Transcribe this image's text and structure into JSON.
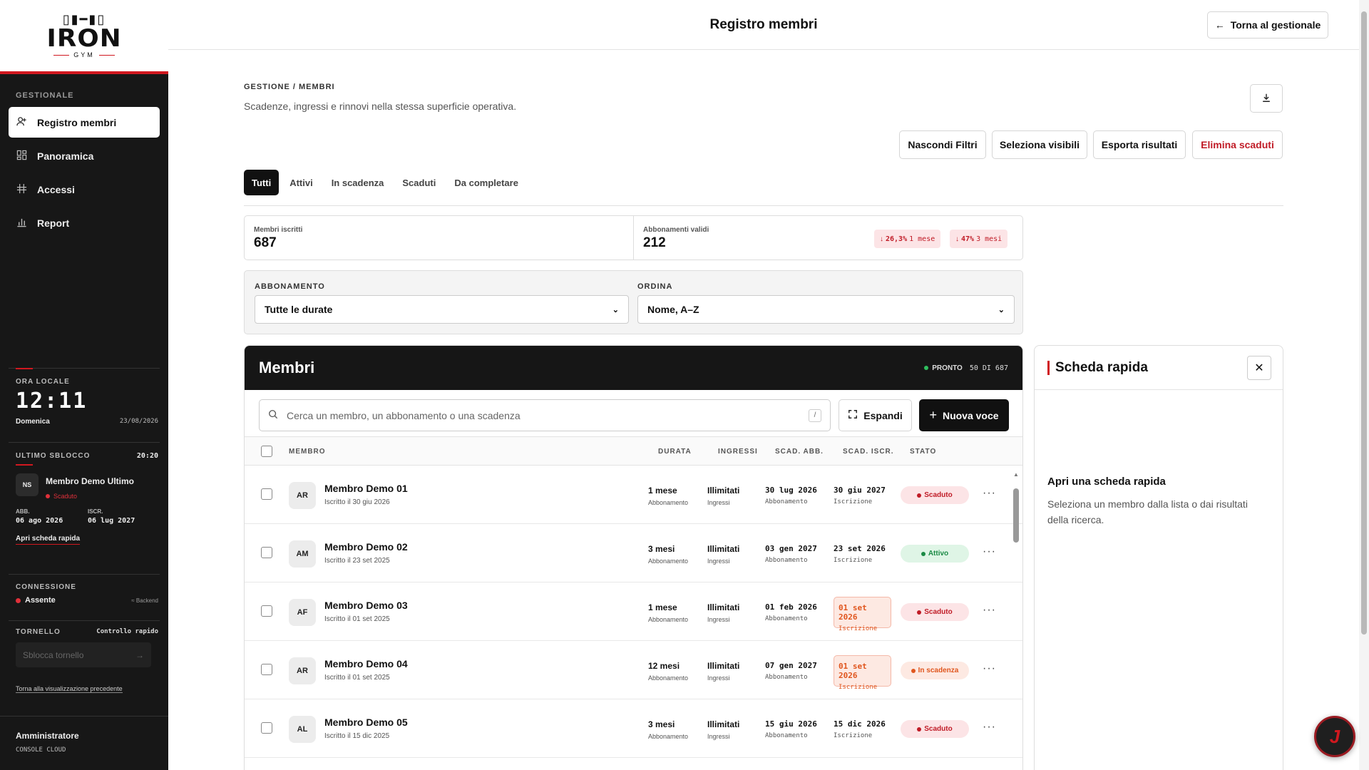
{
  "brand": {
    "mark": "▯▮━▮▯",
    "name": "IRON",
    "sub": "GYM"
  },
  "sidebar": {
    "section_label": "GESTIONALE",
    "items": [
      {
        "label": "Registro membri",
        "icon": "user-plus-icon",
        "active": true
      },
      {
        "label": "Panoramica",
        "icon": "dashboard-icon",
        "active": false
      },
      {
        "label": "Accessi",
        "icon": "access-icon",
        "active": false
      },
      {
        "label": "Report",
        "icon": "bar-chart-icon",
        "active": false
      }
    ],
    "clock": {
      "label": "ORA LOCALE",
      "time": "12:11",
      "day": "Domenica",
      "date": "23/08/2026"
    },
    "last_unlock": {
      "label": "ULTIMO SBLOCCO",
      "time": "20:20",
      "initials": "NS",
      "name": "Membro Demo Ultimo",
      "status": "Scaduto",
      "abb_label": "ABB.",
      "abb_value": "06 ago 2026",
      "iscr_label": "ISCR.",
      "iscr_value": "06 lug 2027",
      "link": "Apri scheda rapida"
    },
    "connection": {
      "label": "CONNESSIONE",
      "status": "Assente",
      "backend": "Backend"
    },
    "turnstile": {
      "label": "TORNELLO",
      "quick": "Controllo rapido",
      "placeholder": "Sblocca tornello"
    },
    "back_link": "Torna alla visualizzazione precedente",
    "user": {
      "role": "Amministratore",
      "console": "CONSOLE CLOUD"
    }
  },
  "topbar": {
    "title": "Registro membri",
    "back_button": "Torna al gestionale"
  },
  "page": {
    "breadcrumb": "GESTIONE / MEMBRI",
    "subtitle": "Scadenze, ingressi e rinnovi nella stessa superficie operativa.",
    "actions": {
      "hide_filters": "Nascondi Filtri",
      "select_visible": "Seleziona visibili",
      "export": "Esporta risultati",
      "delete_expired": "Elimina scaduti"
    },
    "tabs": [
      "Tutti",
      "Attivi",
      "In scadenza",
      "Scaduti",
      "Da completare"
    ],
    "stats": {
      "members_label": "Membri iscritti",
      "members_value": "687",
      "subs_label": "Abbonamenti validi",
      "subs_value": "212",
      "delta1_value": "26,3%",
      "delta1_period": "1 mese",
      "delta2_value": "47%",
      "delta2_period": "3 mesi"
    },
    "filters": {
      "plan_label": "ABBONAMENTO",
      "plan_value": "Tutte le durate",
      "sort_label": "ORDINA",
      "sort_value": "Nome, A–Z"
    }
  },
  "members": {
    "title": "Membri",
    "status": "PRONTO",
    "count": "50 DI 687",
    "search_placeholder": "Cerca un membro, un abbonamento o una scadenza",
    "search_shortcut": "/",
    "expand": "Espandi",
    "new_entry": "Nuova voce",
    "columns": [
      "MEMBRO",
      "DURATA",
      "INGRESSI",
      "SCAD. ABB.",
      "SCAD. ISCR.",
      "STATO"
    ],
    "rows": [
      {
        "initials": "AR",
        "name": "Membro Demo 01",
        "joined": "Iscritto il 30 giu 2026",
        "duration": "1 mese",
        "duration_sub": "Abbonamento",
        "entries": "Illimitati",
        "entries_sub": "Ingressi",
        "abb": "30 lug 2026",
        "abb_sub": "Abbonamento",
        "iscr": "30 giu 2027",
        "iscr_sub": "Iscrizione",
        "status": "Scaduto",
        "status_kind": "scad"
      },
      {
        "initials": "AM",
        "name": "Membro Demo 02",
        "joined": "Iscritto il 23 set 2025",
        "duration": "3 mesi",
        "duration_sub": "Abbonamento",
        "entries": "Illimitati",
        "entries_sub": "Ingressi",
        "abb": "03 gen 2027",
        "abb_sub": "Abbonamento",
        "iscr": "23 set 2026",
        "iscr_sub": "Iscrizione",
        "status": "Attivo",
        "status_kind": "att"
      },
      {
        "initials": "AF",
        "name": "Membro Demo 03",
        "joined": "Iscritto il 01 set 2025",
        "duration": "1 mese",
        "duration_sub": "Abbonamento",
        "entries": "Illimitati",
        "entries_sub": "Ingressi",
        "abb": "01 feb 2026",
        "abb_sub": "Abbonamento",
        "iscr": "01 set 2026",
        "iscr_sub": "Iscrizione",
        "status": "Scaduto",
        "status_kind": "scad"
      },
      {
        "initials": "AR",
        "name": "Membro Demo 04",
        "joined": "Iscritto il 01 set 2025",
        "duration": "12 mesi",
        "duration_sub": "Abbonamento",
        "entries": "Illimitati",
        "entries_sub": "Ingressi",
        "abb": "07 gen 2027",
        "abb_sub": "Abbonamento",
        "iscr": "01 set 2026",
        "iscr_sub": "Iscrizione",
        "status": "In scadenza",
        "status_kind": "insc"
      },
      {
        "initials": "AL",
        "name": "Membro Demo 05",
        "joined": "Iscritto il 15 dic 2025",
        "duration": "3 mesi",
        "duration_sub": "Abbonamento",
        "entries": "Illimitati",
        "entries_sub": "Ingressi",
        "abb": "15 giu 2026",
        "abb_sub": "Abbonamento",
        "iscr": "15 dic 2026",
        "iscr_sub": "Iscrizione",
        "status": "Scaduto",
        "status_kind": "scad"
      }
    ]
  },
  "quick_card": {
    "title": "Scheda rapida",
    "empty_title": "Apri una scheda rapida",
    "empty_text": "Seleziona un membro dalla lista o dai risultati della ricerca."
  },
  "fab": {
    "letter": "J"
  },
  "colors": {
    "brand_red": "#d0181f",
    "dark": "#171717",
    "active_green": "#1b8a45",
    "warning_orange": "#e0561e"
  }
}
